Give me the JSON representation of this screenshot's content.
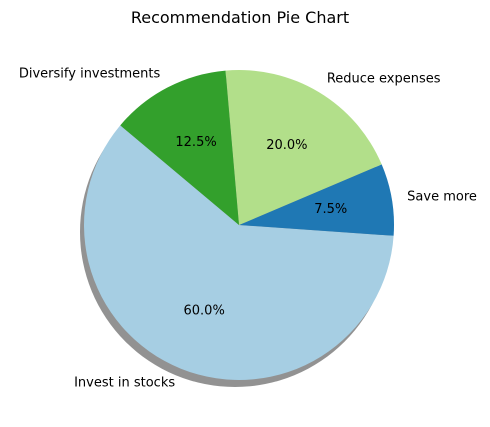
{
  "chart_data": {
    "type": "pie",
    "title": "Recommendation Pie Chart",
    "slices": [
      {
        "label": "Invest in stocks",
        "value": 60.0,
        "pct_label": "60.0%",
        "color": "#a6cee3"
      },
      {
        "label": "Save more",
        "value": 7.5,
        "pct_label": "7.5%",
        "color": "#1f78b4"
      },
      {
        "label": "Reduce expenses",
        "value": 20.0,
        "pct_label": "20.0%",
        "color": "#b2df8a"
      },
      {
        "label": "Diversify investments",
        "value": 12.5,
        "pct_label": "12.5%",
        "color": "#33a02c"
      }
    ],
    "start_angle_deg": 140,
    "shadow": true,
    "legend": "none"
  }
}
